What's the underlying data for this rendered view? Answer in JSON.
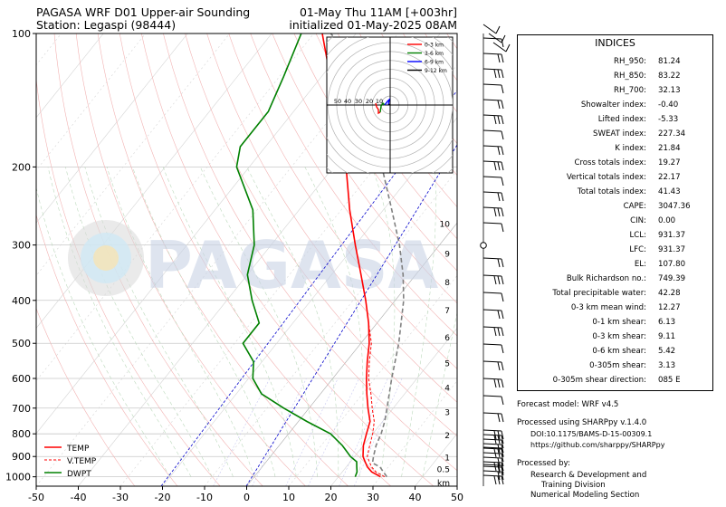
{
  "header": {
    "title_left": "PAGASA WRF D01 Upper-air Sounding",
    "station": "Station: Legaspi (98444)",
    "valid": "01-May Thu 11AM [+003hr]",
    "init": "initialized 01-May-2025 08AM"
  },
  "watermark": "PAGASA",
  "chart_data": {
    "type": "line",
    "subtype": "skew-t log-p sounding",
    "x_axis": {
      "range": [
        -50,
        50
      ],
      "ticks": [
        -50,
        -40,
        -30,
        -20,
        -10,
        0,
        10,
        20,
        30,
        40,
        50
      ]
    },
    "y_axis": {
      "scale": "log",
      "range": [
        1050,
        100
      ],
      "ticks": [
        1000,
        900,
        800,
        700,
        600,
        500,
        400,
        300,
        200,
        100
      ]
    },
    "height_labels": [
      "km",
      "0.5",
      "1",
      "2",
      "3",
      "4",
      "5",
      "6",
      "7",
      "8",
      "9",
      "10"
    ],
    "series": [
      {
        "name": "TEMP",
        "color": "#ff0000",
        "points": [
          [
            1000,
            30
          ],
          [
            975,
            27
          ],
          [
            950,
            25
          ],
          [
            925,
            23.5
          ],
          [
            900,
            22
          ],
          [
            850,
            20
          ],
          [
            800,
            18.5
          ],
          [
            750,
            17
          ],
          [
            700,
            14
          ],
          [
            650,
            11
          ],
          [
            600,
            8
          ],
          [
            550,
            5
          ],
          [
            500,
            2
          ],
          [
            450,
            -2
          ],
          [
            400,
            -7
          ],
          [
            350,
            -13
          ],
          [
            300,
            -20
          ],
          [
            250,
            -28
          ],
          [
            200,
            -37
          ],
          [
            175,
            -43
          ],
          [
            150,
            -50
          ],
          [
            125,
            -58
          ],
          [
            100,
            -68
          ]
        ]
      },
      {
        "name": "V.TEMP",
        "color": "#ff0000",
        "dashed": true,
        "points": [
          [
            1000,
            31
          ],
          [
            975,
            28
          ],
          [
            950,
            26
          ],
          [
            925,
            24.5
          ],
          [
            900,
            23
          ],
          [
            850,
            21.5
          ],
          [
            800,
            20
          ],
          [
            750,
            18
          ],
          [
            700,
            15
          ],
          [
            650,
            12
          ],
          [
            600,
            8.5
          ],
          [
            550,
            5.5
          ],
          [
            500,
            2.5
          ],
          [
            450,
            -2
          ],
          [
            400,
            -7
          ],
          [
            350,
            -13
          ],
          [
            300,
            -20
          ],
          [
            250,
            -28
          ],
          [
            200,
            -37
          ],
          [
            175,
            -43
          ],
          [
            150,
            -50
          ],
          [
            125,
            -58
          ],
          [
            100,
            -68
          ]
        ]
      },
      {
        "name": "DWPT",
        "color": "#008000",
        "points": [
          [
            1000,
            24
          ],
          [
            975,
            23.5
          ],
          [
            950,
            22.5
          ],
          [
            925,
            21.5
          ],
          [
            900,
            19
          ],
          [
            850,
            15
          ],
          [
            800,
            10
          ],
          [
            750,
            2
          ],
          [
            700,
            -6
          ],
          [
            650,
            -14
          ],
          [
            600,
            -19
          ],
          [
            550,
            -22
          ],
          [
            500,
            -28
          ],
          [
            450,
            -28
          ],
          [
            400,
            -34
          ],
          [
            350,
            -40
          ],
          [
            300,
            -44
          ],
          [
            250,
            -51
          ],
          [
            200,
            -63
          ],
          [
            180,
            -66
          ],
          [
            150,
            -66
          ],
          [
            125,
            -69
          ],
          [
            100,
            -73
          ]
        ]
      },
      {
        "name": "parcel",
        "color": "#808080",
        "dashed": true,
        "points": [
          [
            1000,
            31.5
          ],
          [
            950,
            28
          ],
          [
            931,
            25.5
          ],
          [
            900,
            24.5
          ],
          [
            850,
            23
          ],
          [
            800,
            22
          ],
          [
            750,
            20.5
          ],
          [
            700,
            18.5
          ],
          [
            600,
            14
          ],
          [
            500,
            9
          ],
          [
            400,
            2
          ],
          [
            350,
            -3
          ],
          [
            300,
            -9.5
          ],
          [
            250,
            -18
          ],
          [
            200,
            -28.5
          ],
          [
            150,
            -43
          ],
          [
            108,
            -60
          ],
          [
            100,
            -66
          ]
        ]
      }
    ],
    "hodograph": {
      "rings": [
        "50",
        "40",
        "30",
        "20",
        "10"
      ],
      "legend": [
        {
          "label": "0-3 km",
          "color": "#ff0000"
        },
        {
          "label": "3-6 km",
          "color": "#008000"
        },
        {
          "label": "6-9 km",
          "color": "#0000ff"
        },
        {
          "label": "9-12 km",
          "color": "#000000"
        }
      ]
    }
  },
  "indices": {
    "title": "INDICES",
    "rows": [
      {
        "label": "RH_950:",
        "value": "81.24"
      },
      {
        "label": "RH_850:",
        "value": "83.22"
      },
      {
        "label": "RH_700:",
        "value": "32.13"
      },
      {
        "label": "Showalter index:",
        "value": "-0.40"
      },
      {
        "label": "Lifted index:",
        "value": "-5.33"
      },
      {
        "label": "SWEAT index:",
        "value": "227.34"
      },
      {
        "label": "K index:",
        "value": "21.84"
      },
      {
        "label": "Cross totals index:",
        "value": "19.27"
      },
      {
        "label": "Vertical totals index:",
        "value": "22.17"
      },
      {
        "label": "Total totals index:",
        "value": "41.43"
      },
      {
        "label": "CAPE:",
        "value": "3047.36"
      },
      {
        "label": "CIN:",
        "value": "0.00"
      },
      {
        "label": "LCL:",
        "value": "931.37"
      },
      {
        "label": "LFC:",
        "value": "931.37"
      },
      {
        "label": "EL:",
        "value": "107.80"
      },
      {
        "label": "Bulk Richardson no.:",
        "value": "749.39"
      },
      {
        "label": "Total precipitable water:",
        "value": "42.28"
      },
      {
        "label": "0-3 km mean wind:",
        "value": "12.27"
      },
      {
        "label": "0-1 km shear:",
        "value": "6.13"
      },
      {
        "label": "0-3 km shear:",
        "value": "9.11"
      },
      {
        "label": "0-6 km shear:",
        "value": "5.42"
      },
      {
        "label": "0-305m shear:",
        "value": "3.13"
      },
      {
        "label": "0-305m shear direction:",
        "value": "085 E"
      }
    ]
  },
  "footer": {
    "model": "Forecast model: WRF v4.5",
    "processed": "Processed using SHARPpy v.1.4.0",
    "doi": "DOI:10.1175/BAMS-D-15-00309.1",
    "url": "https://github.com/sharppy/SHARPpy",
    "processed_by": "Processed by:",
    "org1": "Research & Development and",
    "org2": "Training Division",
    "org3": "Numerical Modeling Section"
  }
}
